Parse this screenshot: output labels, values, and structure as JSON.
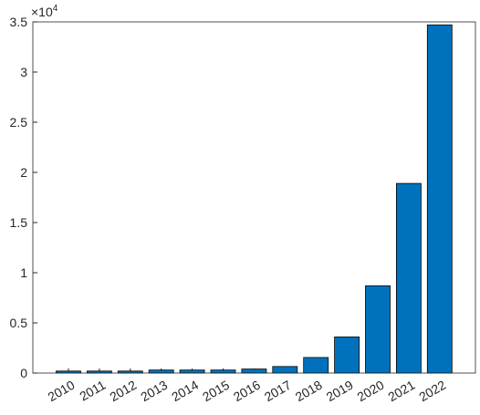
{
  "chart_data": {
    "type": "bar",
    "y_multiplier": {
      "base": "×10",
      "exponent": "4"
    },
    "categories": [
      "2010",
      "2011",
      "2012",
      "2013",
      "2014",
      "2015",
      "2016",
      "2017",
      "2018",
      "2019",
      "2020",
      "2021",
      "2022"
    ],
    "values": [
      0.02,
      0.02,
      0.02,
      0.03,
      0.03,
      0.03,
      0.04,
      0.065,
      0.155,
      0.36,
      0.87,
      1.89,
      3.47
    ],
    "color": "#0072bd",
    "ylim": [
      0,
      3.5
    ],
    "yticks": [
      0,
      0.5,
      1,
      1.5,
      2,
      2.5,
      3,
      3.5
    ],
    "grid": false
  }
}
